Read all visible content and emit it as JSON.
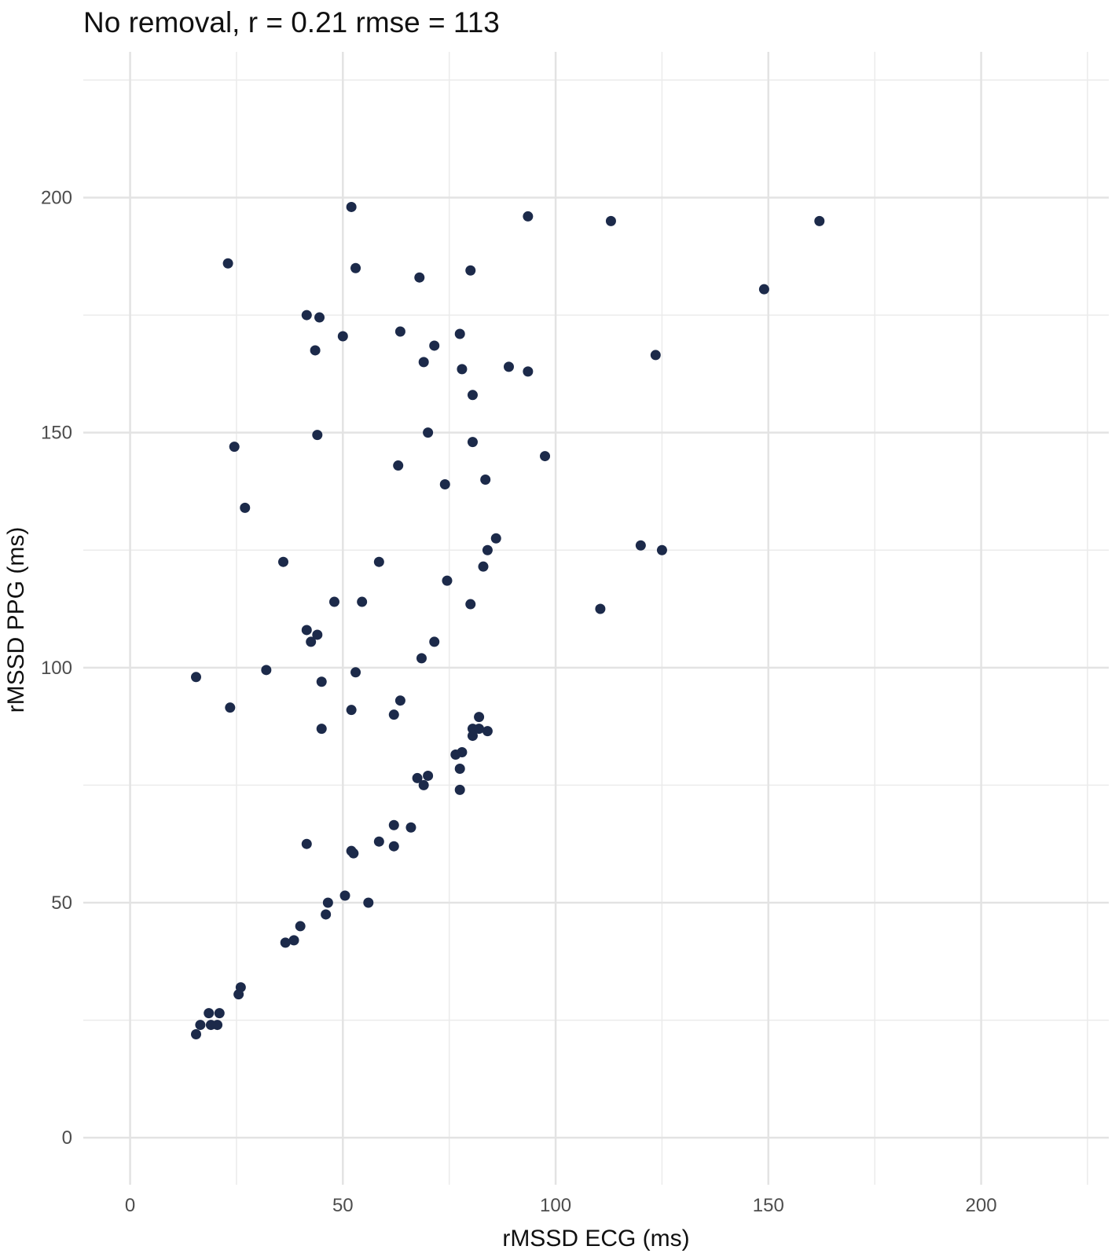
{
  "chart_data": {
    "type": "scatter",
    "title": "No removal, r = 0.21 rmse = 113",
    "xlabel": "rMSSD ECG (ms)",
    "ylabel": "rMSSD PPG (ms)",
    "xlim": [
      -11,
      230
    ],
    "ylim": [
      -10,
      231
    ],
    "x_ticks": [
      0,
      50,
      100,
      150,
      200
    ],
    "x_tick_labels": [
      "0",
      "50",
      "100",
      "150",
      "200"
    ],
    "y_ticks": [
      0,
      50,
      100,
      150,
      200
    ],
    "y_tick_labels": [
      "0",
      "50",
      "100",
      "150",
      "200"
    ],
    "grid": true,
    "legend": "none",
    "point_color": "#1c2a4a",
    "points": [
      [
        52,
        198
      ],
      [
        93.5,
        196
      ],
      [
        113,
        195
      ],
      [
        162,
        195
      ],
      [
        23,
        186
      ],
      [
        53,
        185
      ],
      [
        80,
        184.5
      ],
      [
        68,
        183
      ],
      [
        149,
        180.5
      ],
      [
        41.5,
        175
      ],
      [
        44.5,
        174.5
      ],
      [
        63.5,
        171.5
      ],
      [
        77.5,
        171
      ],
      [
        50,
        170.5
      ],
      [
        71.5,
        168.5
      ],
      [
        43.5,
        167.5
      ],
      [
        123.5,
        166.5
      ],
      [
        69,
        165
      ],
      [
        89,
        164
      ],
      [
        78,
        163.5
      ],
      [
        93.5,
        163
      ],
      [
        80.5,
        158
      ],
      [
        70,
        150
      ],
      [
        44,
        149.5
      ],
      [
        80.5,
        148
      ],
      [
        24.5,
        147
      ],
      [
        97.5,
        145
      ],
      [
        63,
        143
      ],
      [
        83.5,
        140
      ],
      [
        74,
        139
      ],
      [
        27,
        134
      ],
      [
        86,
        127.5
      ],
      [
        120,
        126
      ],
      [
        125,
        125
      ],
      [
        84,
        125
      ],
      [
        36,
        122.5
      ],
      [
        58.5,
        122.5
      ],
      [
        83,
        121.5
      ],
      [
        74.5,
        118.5
      ],
      [
        48,
        114
      ],
      [
        54.5,
        114
      ],
      [
        80,
        113.5
      ],
      [
        110.5,
        112.5
      ],
      [
        41.5,
        108
      ],
      [
        44,
        107
      ],
      [
        42.5,
        105.5
      ],
      [
        71.5,
        105.5
      ],
      [
        68.5,
        102
      ],
      [
        32,
        99.5
      ],
      [
        53,
        99
      ],
      [
        15.5,
        98
      ],
      [
        45,
        97
      ],
      [
        63.5,
        93
      ],
      [
        23.5,
        91.5
      ],
      [
        52,
        91
      ],
      [
        62,
        90
      ],
      [
        82,
        89.5
      ],
      [
        80.5,
        87
      ],
      [
        82,
        87
      ],
      [
        45,
        87
      ],
      [
        84,
        86.5
      ],
      [
        80.5,
        85.5
      ],
      [
        78,
        82
      ],
      [
        76.5,
        81.5
      ],
      [
        77.5,
        78.5
      ],
      [
        67.5,
        76.5
      ],
      [
        70,
        77
      ],
      [
        69,
        75
      ],
      [
        77.5,
        74
      ],
      [
        62,
        66.5
      ],
      [
        66,
        66
      ],
      [
        58.5,
        63
      ],
      [
        41.5,
        62.5
      ],
      [
        62,
        62
      ],
      [
        52,
        61
      ],
      [
        52.5,
        60.5
      ],
      [
        50.5,
        51.5
      ],
      [
        56,
        50
      ],
      [
        46.5,
        50
      ],
      [
        46,
        47.5
      ],
      [
        40,
        45
      ],
      [
        38.5,
        42
      ],
      [
        36.5,
        41.5
      ],
      [
        26,
        32
      ],
      [
        25.5,
        30.5
      ],
      [
        18.5,
        26.5
      ],
      [
        21,
        26.5
      ],
      [
        16.5,
        24
      ],
      [
        19,
        24
      ],
      [
        20.5,
        24
      ],
      [
        15.5,
        22
      ]
    ]
  }
}
